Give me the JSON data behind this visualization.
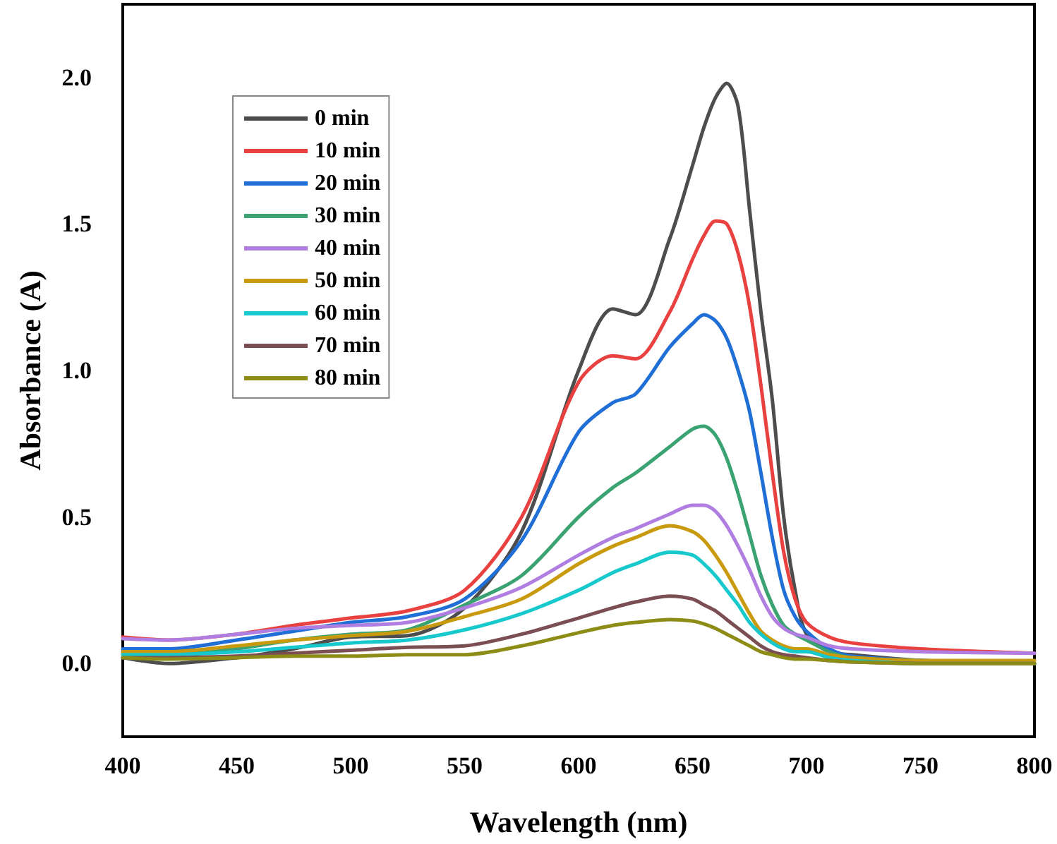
{
  "chart_data": {
    "type": "line",
    "xlabel": "Wavelength (nm)",
    "ylabel": "Absorbance (A)",
    "x": [
      400,
      420,
      450,
      475,
      500,
      525,
      550,
      575,
      600,
      615,
      625,
      640,
      650,
      655,
      660,
      665,
      670,
      675,
      680,
      685,
      690,
      695,
      700,
      710,
      720,
      750,
      800
    ],
    "xlim": [
      400,
      800
    ],
    "xticks": [
      400,
      450,
      500,
      550,
      600,
      650,
      700,
      750,
      800
    ],
    "ylim": [
      -0.25,
      2.25
    ],
    "yticks": [
      {
        "value": 0,
        "label": "0.0"
      },
      0.5,
      {
        "value": 1,
        "label": "1.0"
      },
      1.5,
      {
        "value": 2,
        "label": "2.0"
      }
    ],
    "grid": false,
    "legend": "top left",
    "marker": "none",
    "line_style": "solid",
    "series": [
      {
        "name": "0 min",
        "color": "#4d4d4d",
        "values": [
          0.02,
          0.0,
          0.02,
          0.05,
          0.09,
          0.095,
          0.19,
          0.45,
          1.0,
          1.21,
          1.19,
          1.45,
          1.7,
          1.83,
          1.93,
          1.98,
          1.9,
          1.55,
          1.2,
          0.9,
          0.5,
          0.25,
          0.1,
          0.04,
          0.03,
          0.01,
          0.0
        ]
      },
      {
        "name": "10 min",
        "color": "#e8413f",
        "values": [
          0.09,
          0.08,
          0.1,
          0.13,
          0.155,
          0.18,
          0.25,
          0.5,
          0.96,
          1.05,
          1.04,
          1.2,
          1.38,
          1.46,
          1.51,
          1.5,
          1.4,
          1.22,
          0.95,
          0.65,
          0.38,
          0.22,
          0.14,
          0.09,
          0.07,
          0.05,
          0.035
        ]
      },
      {
        "name": "20 min",
        "color": "#1f6fd6",
        "values": [
          0.05,
          0.05,
          0.08,
          0.11,
          0.14,
          0.16,
          0.22,
          0.42,
          0.79,
          0.89,
          0.92,
          1.08,
          1.16,
          1.19,
          1.17,
          1.11,
          1.0,
          0.86,
          0.65,
          0.43,
          0.25,
          0.16,
          0.11,
          0.05,
          0.025,
          0.01,
          0.0
        ]
      },
      {
        "name": "30 min",
        "color": "#3aa371",
        "values": [
          0.035,
          0.03,
          0.05,
          0.08,
          0.1,
          0.115,
          0.2,
          0.3,
          0.5,
          0.6,
          0.65,
          0.74,
          0.8,
          0.81,
          0.78,
          0.7,
          0.58,
          0.44,
          0.3,
          0.2,
          0.13,
          0.1,
          0.08,
          0.04,
          0.02,
          0.01,
          0.0
        ]
      },
      {
        "name": "40 min",
        "color": "#b07ee0",
        "values": [
          0.085,
          0.08,
          0.1,
          0.12,
          0.13,
          0.14,
          0.19,
          0.26,
          0.37,
          0.43,
          0.46,
          0.51,
          0.54,
          0.54,
          0.52,
          0.47,
          0.4,
          0.32,
          0.23,
          0.16,
          0.12,
          0.1,
          0.09,
          0.06,
          0.05,
          0.04,
          0.035
        ]
      },
      {
        "name": "50 min",
        "color": "#c99a0d",
        "values": [
          0.04,
          0.04,
          0.06,
          0.08,
          0.095,
          0.11,
          0.16,
          0.22,
          0.34,
          0.4,
          0.43,
          0.47,
          0.45,
          0.42,
          0.37,
          0.31,
          0.24,
          0.17,
          0.11,
          0.08,
          0.06,
          0.05,
          0.05,
          0.03,
          0.02,
          0.01,
          0.01
        ]
      },
      {
        "name": "60 min",
        "color": "#17c8cc",
        "values": [
          0.03,
          0.03,
          0.04,
          0.055,
          0.07,
          0.08,
          0.115,
          0.17,
          0.25,
          0.31,
          0.34,
          0.38,
          0.37,
          0.34,
          0.3,
          0.25,
          0.2,
          0.14,
          0.1,
          0.07,
          0.05,
          0.04,
          0.04,
          0.02,
          0.01,
          0.0,
          0.0
        ]
      },
      {
        "name": "70 min",
        "color": "#7a4e52",
        "values": [
          0.02,
          0.02,
          0.025,
          0.035,
          0.045,
          0.055,
          0.06,
          0.1,
          0.155,
          0.19,
          0.21,
          0.23,
          0.22,
          0.2,
          0.18,
          0.15,
          0.12,
          0.09,
          0.06,
          0.04,
          0.03,
          0.025,
          0.02,
          0.01,
          0.005,
          0.0,
          0.0
        ]
      },
      {
        "name": "80 min",
        "color": "#8c8c16",
        "values": [
          0.02,
          0.015,
          0.02,
          0.025,
          0.025,
          0.03,
          0.03,
          0.06,
          0.105,
          0.13,
          0.14,
          0.15,
          0.145,
          0.135,
          0.12,
          0.1,
          0.08,
          0.06,
          0.04,
          0.03,
          0.02,
          0.015,
          0.015,
          0.01,
          0.005,
          0.0,
          0.0
        ]
      }
    ]
  }
}
